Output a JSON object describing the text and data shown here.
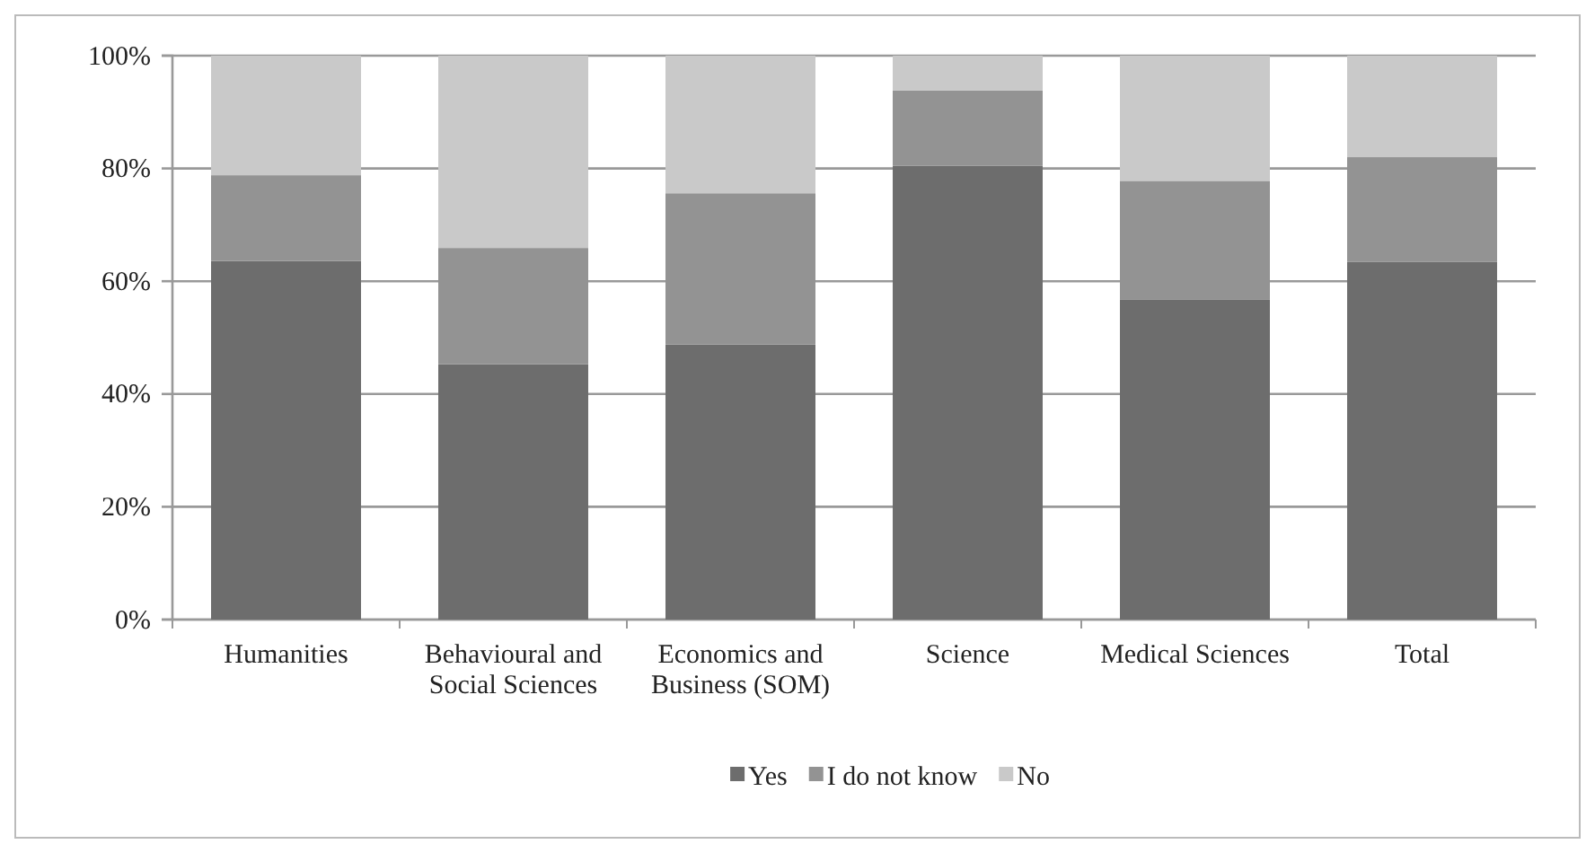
{
  "chart_data": {
    "type": "bar",
    "stacked": true,
    "categories": [
      "Humanities",
      "Behavioural and Social Sciences",
      "Economics and Business (SOM)",
      "Science",
      "Medical Sciences",
      "Total"
    ],
    "series": [
      {
        "name": "Yes",
        "color": "#6d6d6d",
        "values": [
          63.6,
          45.3,
          48.8,
          80.5,
          56.7,
          63.4
        ]
      },
      {
        "name": "I do not know",
        "color": "#939393",
        "values": [
          15.2,
          20.6,
          26.8,
          13.3,
          21.1,
          18.6
        ]
      },
      {
        "name": "No",
        "color": "#c9c9c9",
        "values": [
          21.2,
          34.1,
          24.4,
          6.2,
          22.2,
          18.0
        ]
      }
    ],
    "ylim": [
      0,
      100
    ],
    "yticks": [
      {
        "value": 0,
        "label": "0%"
      },
      {
        "value": 20,
        "label": "20%"
      },
      {
        "value": 40,
        "label": "40%"
      },
      {
        "value": 60,
        "label": "60%"
      },
      {
        "value": 80,
        "label": "80%"
      },
      {
        "value": 100,
        "label": "100%"
      }
    ],
    "grid": "y",
    "legend": "bottom"
  }
}
